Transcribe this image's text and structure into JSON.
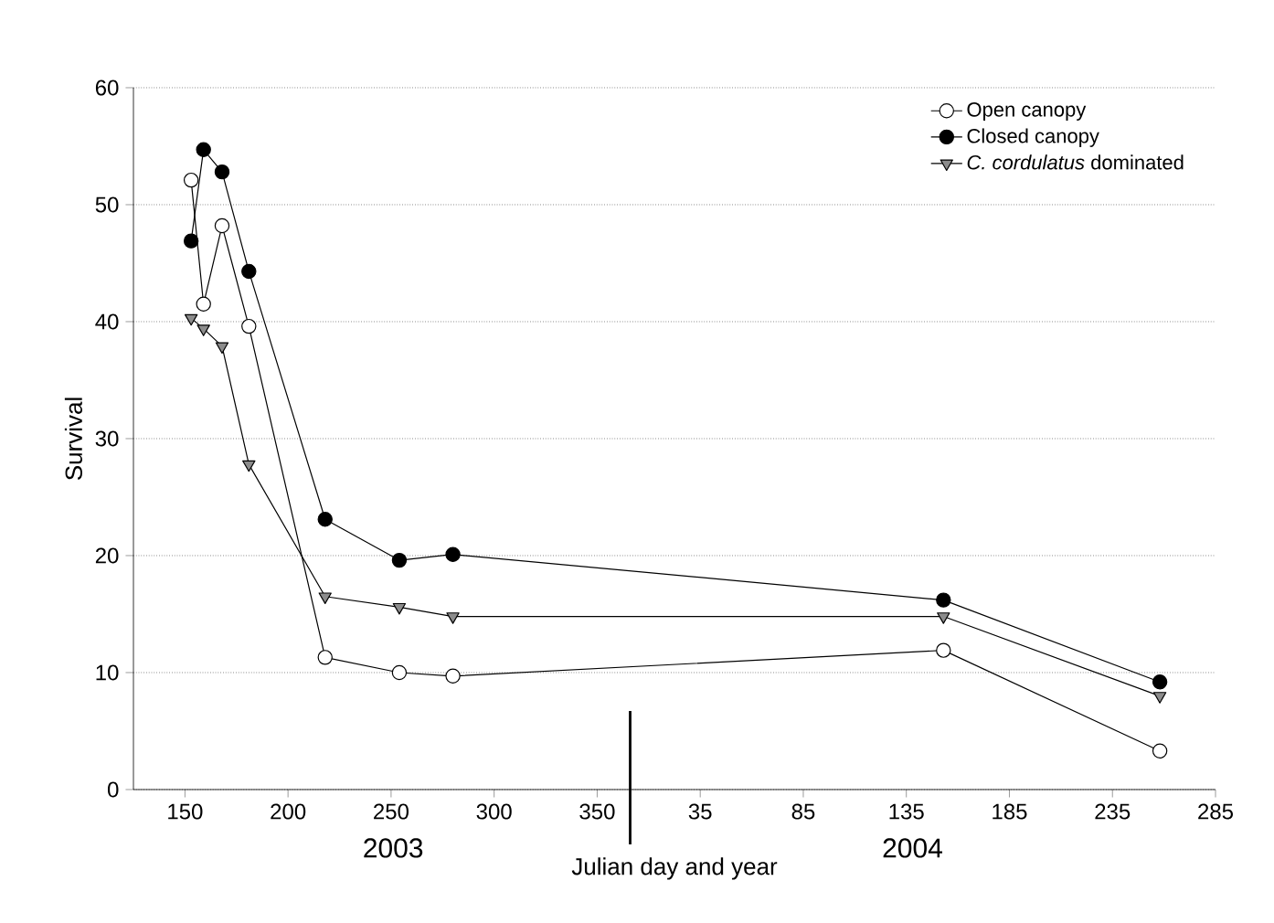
{
  "chart_data": {
    "type": "line",
    "xlabel": "Julian day and year",
    "ylabel": "Survival",
    "xlim": [
      "2003-05-05",
      "2004-10-11"
    ],
    "ylim": [
      0,
      60
    ],
    "xticks": [
      {
        "value": "2003-05-30",
        "label": "150"
      },
      {
        "value": "2003-07-19",
        "label": "200"
      },
      {
        "value": "2003-09-07",
        "label": "250"
      },
      {
        "value": "2003-10-27",
        "label": "300"
      },
      {
        "value": "2003-12-16",
        "label": "350"
      },
      {
        "value": "2004-02-04",
        "label": "35"
      },
      {
        "value": "2004-03-25",
        "label": "85"
      },
      {
        "value": "2004-05-14",
        "label": "135"
      },
      {
        "value": "2004-07-03",
        "label": "185"
      },
      {
        "value": "2004-08-22",
        "label": "235"
      },
      {
        "value": "2004-10-11",
        "label": "285"
      }
    ],
    "yticks": [
      0,
      10,
      20,
      30,
      40,
      50,
      60
    ],
    "grid": "y",
    "legend": "top right",
    "line_style": "solid",
    "ref_lines": [
      {
        "axis": "x",
        "value": "2004-01-01",
        "color": "#000000"
      }
    ],
    "annotations": [
      "2003",
      "2004"
    ],
    "series": [
      {
        "name": "Open canopy",
        "color": "#ffffff",
        "marker": "circle",
        "x": [
          "2003-06-02",
          "2003-06-08",
          "2003-06-17",
          "2003-06-30",
          "2003-08-06",
          "2003-09-11",
          "2003-10-07",
          "2004-06-01",
          "2004-09-14"
        ],
        "values": [
          52.1,
          41.5,
          48.2,
          39.6,
          11.3,
          10.0,
          9.7,
          11.9,
          3.3
        ]
      },
      {
        "name": "Closed canopy",
        "color": "#000000",
        "marker": "circle",
        "x": [
          "2003-06-02",
          "2003-06-08",
          "2003-06-17",
          "2003-06-30",
          "2003-08-06",
          "2003-09-11",
          "2003-10-07",
          "2004-06-01",
          "2004-09-14"
        ],
        "values": [
          46.9,
          54.7,
          52.8,
          44.3,
          23.1,
          19.6,
          20.1,
          16.2,
          9.2
        ]
      },
      {
        "name": "*C. cordulatus* dominated",
        "color": "#8c8c8c",
        "marker": "triangle",
        "x": [
          "2003-06-02",
          "2003-06-08",
          "2003-06-17",
          "2003-06-30",
          "2003-08-06",
          "2003-09-11",
          "2003-10-07",
          "2004-06-01",
          "2004-09-14"
        ],
        "values": [
          40.3,
          39.4,
          37.9,
          27.8,
          16.5,
          15.6,
          14.8,
          14.8,
          8.0
        ]
      }
    ]
  }
}
